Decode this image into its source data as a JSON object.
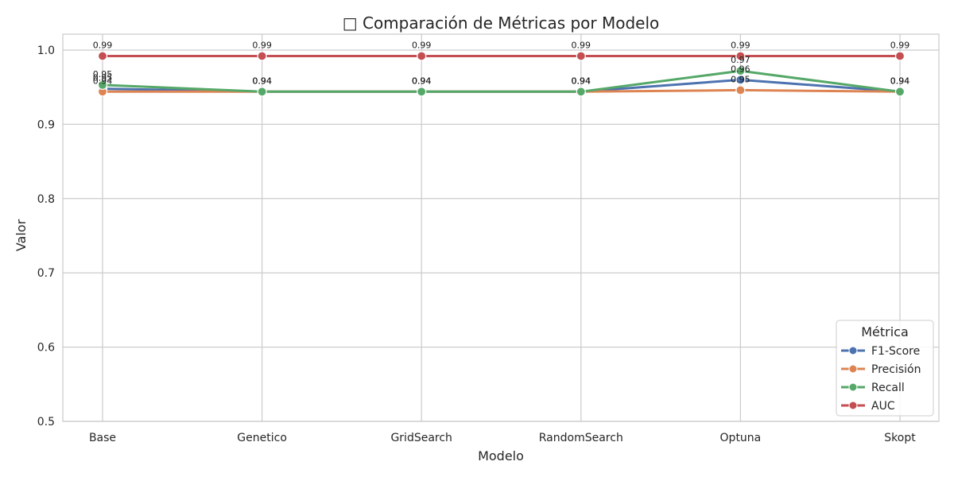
{
  "chart_data": {
    "type": "line",
    "title": "□ Comparación de Métricas por Modelo",
    "xlabel": "Modelo",
    "ylabel": "Valor",
    "ylim": [
      0.5,
      1.0
    ],
    "yticks": [
      "0.5",
      "0.6",
      "0.7",
      "0.8",
      "0.9",
      "1.0"
    ],
    "grid": true,
    "legend_title": "Métrica",
    "legend_position": "bottom-right",
    "categories": [
      "Base",
      "Genetico",
      "GridSearch",
      "RandomSearch",
      "Optuna",
      "Skopt"
    ],
    "series": [
      {
        "name": "F1-Score",
        "color": "#4c72b0",
        "values": [
          0.948,
          0.944,
          0.944,
          0.944,
          0.96,
          0.944
        ],
        "labels": [
          "0.95",
          "0.94",
          "0.94",
          "0.94",
          "0.96",
          "0.94"
        ]
      },
      {
        "name": "Precisión",
        "color": "#dd8452",
        "values": [
          0.944,
          0.944,
          0.944,
          0.944,
          0.946,
          0.944
        ],
        "labels": [
          "0.94",
          "0.94",
          "0.94",
          "0.94",
          "0.95",
          "0.94"
        ]
      },
      {
        "name": "Recall",
        "color": "#55a868",
        "values": [
          0.953,
          0.944,
          0.944,
          0.944,
          0.972,
          0.944
        ],
        "labels": [
          "0.95",
          "0.94",
          "0.94",
          "0.94",
          "0.97",
          "0.94"
        ]
      },
      {
        "name": "AUC",
        "color": "#c44e52",
        "values": [
          0.992,
          0.992,
          0.992,
          0.992,
          0.992,
          0.992
        ],
        "labels": [
          "0.99",
          "0.99",
          "0.99",
          "0.99",
          "0.99",
          "0.99"
        ]
      }
    ]
  }
}
